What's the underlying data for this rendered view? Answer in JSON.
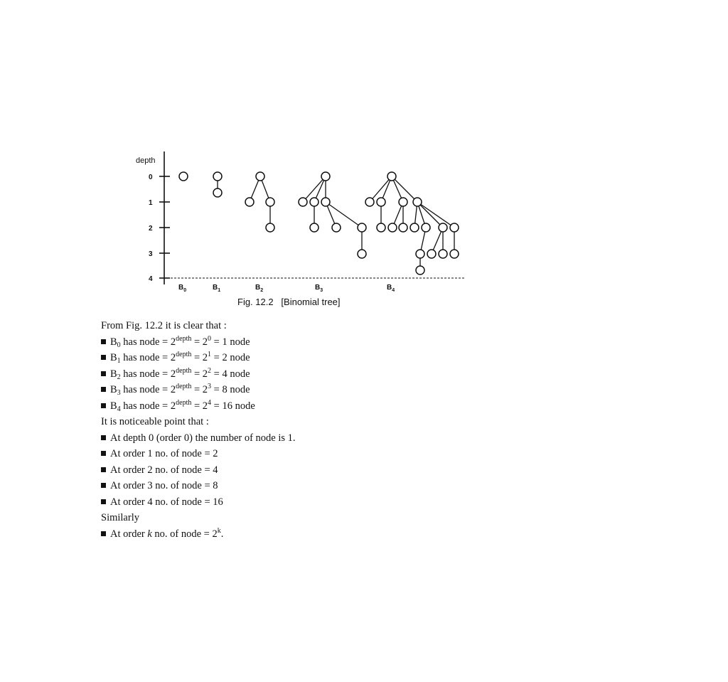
{
  "figure": {
    "axis_label": "depth",
    "depth_ticks": [
      "0",
      "1",
      "2",
      "3",
      "4"
    ],
    "tree_labels": [
      {
        "base": "B",
        "sub": "0"
      },
      {
        "base": "B",
        "sub": "1"
      },
      {
        "base": "B",
        "sub": "2"
      },
      {
        "base": "B",
        "sub": "3"
      },
      {
        "base": "B",
        "sub": "4"
      }
    ],
    "caption": "Fig. 12.2   [Binomial tree]"
  },
  "text": {
    "intro": "From Fig. 12.2 it is clear that :",
    "node_lines": [
      {
        "sub": "0",
        "exp": "0",
        "count": "1"
      },
      {
        "sub": "1",
        "exp": "1",
        "count": "2"
      },
      {
        "sub": "2",
        "exp": "2",
        "count": "4"
      },
      {
        "sub": "3",
        "exp": "3",
        "count": "8"
      },
      {
        "sub": "4",
        "exp": "4",
        "count": "16"
      }
    ],
    "node_line_parts": {
      "b": "B",
      "has": " has node = 2",
      "depth": "depth",
      "eq": " = 2",
      "eq2": " = ",
      "node": " node"
    },
    "noticeable": "It is noticeable point that :",
    "order_lines": [
      "At depth 0 (order 0) the number of node is 1.",
      "At order 1 no. of node = 2",
      "At order 2 no. of node = 4",
      "At order 3 no. of node = 8",
      "At order 4 no. of node = 16"
    ],
    "similarly": "Similarly",
    "last_line": {
      "pre": "At order ",
      "k": "k",
      "mid": " no. of node = 2",
      "exp": "k",
      "post": "."
    }
  }
}
